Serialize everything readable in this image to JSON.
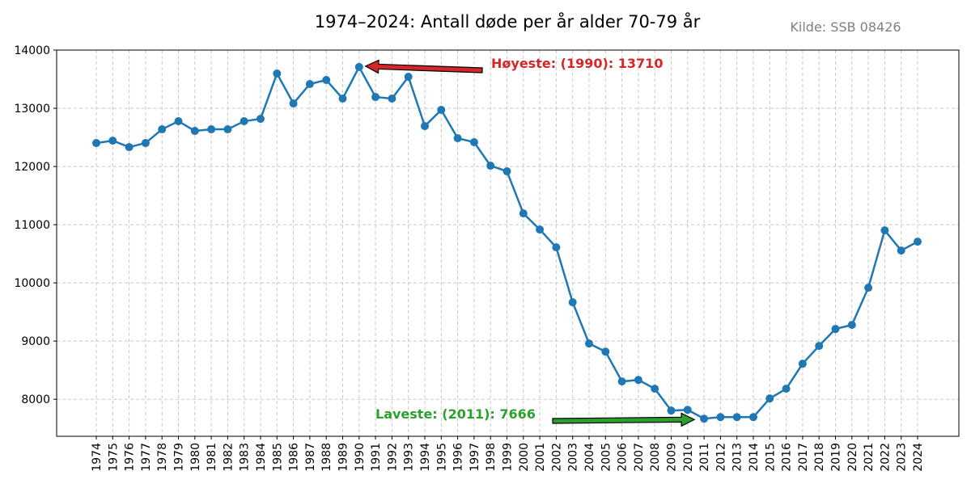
{
  "chart_data": {
    "type": "line",
    "title": "1974–2024: Antall døde per år alder 70-79 år",
    "source": "Kilde: SSB 08426",
    "xlabel": "",
    "ylabel": "",
    "ylim": [
      7364,
      14000
    ],
    "yticks": [
      8000,
      9000,
      10000,
      11000,
      12000,
      13000,
      14000
    ],
    "grid": true,
    "line_color": "#1f77b4",
    "x": [
      1974,
      1975,
      1976,
      1977,
      1978,
      1979,
      1980,
      1981,
      1982,
      1983,
      1984,
      1985,
      1986,
      1987,
      1988,
      1989,
      1990,
      1991,
      1992,
      1993,
      1994,
      1995,
      1996,
      1997,
      1998,
      1999,
      2000,
      2001,
      2002,
      2003,
      2004,
      2005,
      2006,
      2007,
      2008,
      2009,
      2010,
      2011,
      2012,
      2013,
      2014,
      2015,
      2016,
      2017,
      2018,
      2019,
      2020,
      2021,
      2022,
      2023,
      2024
    ],
    "values": [
      12403,
      12444,
      12333,
      12403,
      12639,
      12778,
      12611,
      12639,
      12639,
      12778,
      12819,
      13597,
      13083,
      13417,
      13486,
      13167,
      13710,
      13194,
      13167,
      13542,
      12694,
      12972,
      12486,
      12417,
      12014,
      11917,
      11194,
      10917,
      10611,
      9667,
      8958,
      8819,
      8306,
      8333,
      8181,
      7806,
      7819,
      7666,
      7694,
      7694,
      7694,
      8014,
      8181,
      8611,
      8917,
      9208,
      9278,
      9917,
      10903,
      10556,
      10708
    ],
    "annotations": [
      {
        "text": "Høyeste: (1990): 13710",
        "x": 1990,
        "y": 13710,
        "color": "#d62728"
      },
      {
        "text": "Laveste: (2011): 7666",
        "x": 2011,
        "y": 7666,
        "color": "#2ca02c"
      }
    ]
  }
}
